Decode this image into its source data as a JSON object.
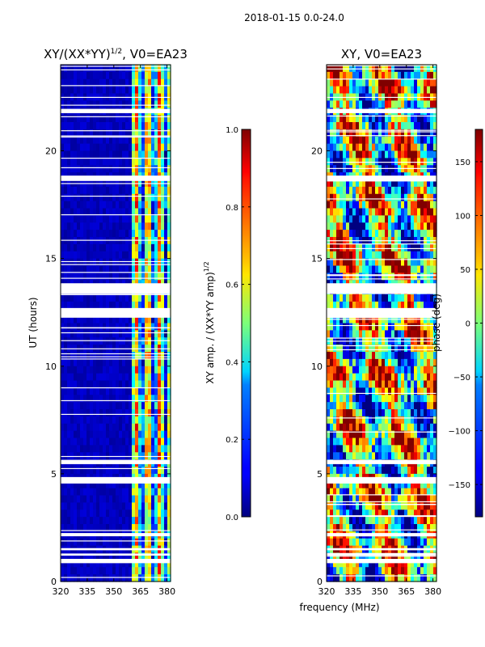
{
  "suptitle": "2018-01-15 0.0-24.0",
  "chart_data": [
    {
      "type": "heatmap",
      "title": "XY/(XX*YY)^{1/2}, V0=EA23",
      "title_main": "XY/(XX*YY)",
      "title_sup": "1/2",
      "title_tail": ", V0=EA23",
      "xlabel": "",
      "ylabel": "UT (hours)",
      "xlim": [
        320,
        382
      ],
      "ylim": [
        0,
        24
      ],
      "xticks": [
        320,
        335,
        350,
        365,
        380
      ],
      "yticks": [
        0,
        5,
        10,
        15,
        20
      ],
      "colorbar": {
        "label": "XY amp. / (XX*YY amp)^{1/2}",
        "label_main": "XY amp. / (XX*YY amp)",
        "label_sup": "1/2",
        "range": [
          0.0,
          1.0
        ],
        "ticks": [
          "0.0",
          "0.2",
          "0.4",
          "0.6",
          "0.8",
          "1.0"
        ],
        "tick_values": [
          0.0,
          0.2,
          0.4,
          0.6,
          0.8,
          1.0
        ],
        "colormap": "jet"
      },
      "pattern": "low amplitude (~0.05) below 361 MHz; high amplitude bands (0.5-0.9) at 362-382 MHz",
      "gaps_hours": [
        [
          0.85,
          1.05
        ],
        [
          1.2,
          1.3
        ],
        [
          1.45,
          1.55
        ],
        [
          2.1,
          2.25
        ],
        [
          4.55,
          4.85
        ],
        [
          5.45,
          5.65
        ],
        [
          12.25,
          12.7
        ],
        [
          13.35,
          13.85
        ],
        [
          18.6,
          18.85
        ],
        [
          21.75,
          21.95
        ]
      ]
    },
    {
      "type": "heatmap",
      "title": "XY, V0=EA23",
      "xlabel": "frequency (MHz)",
      "ylabel": "",
      "xlim": [
        320,
        382
      ],
      "ylim": [
        0,
        24
      ],
      "xticks": [
        320,
        335,
        350,
        365,
        380
      ],
      "yticks": [
        0,
        5,
        10,
        15,
        20
      ],
      "colorbar": {
        "label": "phase (deg)",
        "range": [
          -180,
          180
        ],
        "ticks": [
          "−150",
          "−100",
          "−50",
          "0",
          "50",
          "100",
          "150"
        ],
        "tick_values": [
          -150,
          -100,
          -50,
          0,
          50,
          100,
          150
        ],
        "colormap": "jet"
      },
      "pattern": "noisy phase spanning -180 to 180 deg with striations",
      "gaps_hours": [
        [
          0.85,
          1.05
        ],
        [
          1.2,
          1.3
        ],
        [
          1.45,
          1.55
        ],
        [
          2.1,
          2.25
        ],
        [
          4.55,
          4.85
        ],
        [
          5.45,
          5.65
        ],
        [
          12.25,
          12.7
        ],
        [
          13.35,
          13.85
        ],
        [
          18.6,
          18.85
        ],
        [
          21.75,
          21.95
        ]
      ]
    }
  ]
}
